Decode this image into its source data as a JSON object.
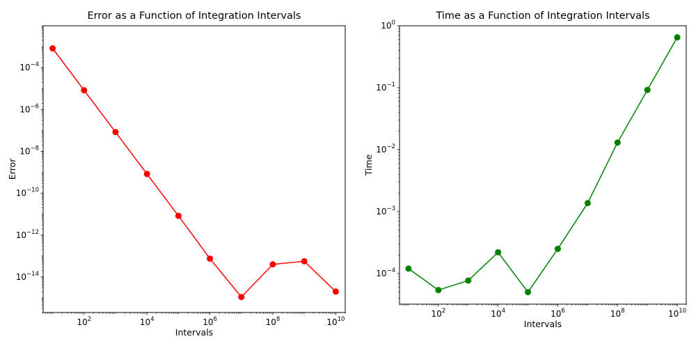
{
  "chart_data": [
    {
      "type": "line",
      "title": "Error as a Function of Integration Intervals",
      "xlabel": "Intervals",
      "ylabel": "Error",
      "xscale": "log",
      "yscale": "log",
      "xlim": [
        5.0,
        20000000000
      ],
      "ylim": [
        2e-16,
        0.01
      ],
      "x": [
        10,
        100,
        1000,
        10000,
        100000,
        1000000,
        10000000,
        100000000,
        1000000000,
        10000000000
      ],
      "xticks": [
        {
          "value": 100,
          "base": "10",
          "exp": "2"
        },
        {
          "value": 10000,
          "base": "10",
          "exp": "4"
        },
        {
          "value": 1000000,
          "base": "10",
          "exp": "6"
        },
        {
          "value": 100000000,
          "base": "10",
          "exp": "8"
        },
        {
          "value": 10000000000,
          "base": "10",
          "exp": "10"
        }
      ],
      "yticks": [
        {
          "value": 0.0001,
          "base": "10",
          "exp": "−4"
        },
        {
          "value": 1e-06,
          "base": "10",
          "exp": "−6"
        },
        {
          "value": 1e-08,
          "base": "10",
          "exp": "−8"
        },
        {
          "value": 1e-10,
          "base": "10",
          "exp": "−10"
        },
        {
          "value": 1e-12,
          "base": "10",
          "exp": "−12"
        },
        {
          "value": 1e-14,
          "base": "10",
          "exp": "−14"
        }
      ],
      "grid": false,
      "series": [
        {
          "color": "#ff0000",
          "marker": "circle",
          "values": [
            0.00083,
            8.3e-06,
            8.3e-08,
            8.3e-10,
            8.3e-12,
            7.5e-14,
            1.1e-15,
            4e-14,
            5.6e-14,
            2e-15
          ]
        }
      ]
    },
    {
      "type": "line",
      "title": "Time as a Function of Integration Intervals",
      "xlabel": "Intervals",
      "ylabel": "Time",
      "xscale": "log",
      "yscale": "log",
      "xlim": [
        5.0,
        20000000000
      ],
      "ylim": [
        3.2e-05,
        1.0
      ],
      "x": [
        10,
        100,
        1000,
        10000,
        100000,
        1000000,
        10000000,
        100000000,
        1000000000,
        10000000000
      ],
      "xticks": [
        {
          "value": 100,
          "base": "10",
          "exp": "2"
        },
        {
          "value": 10000,
          "base": "10",
          "exp": "4"
        },
        {
          "value": 1000000,
          "base": "10",
          "exp": "6"
        },
        {
          "value": 100000000,
          "base": "10",
          "exp": "8"
        },
        {
          "value": 10000000000,
          "base": "10",
          "exp": "10"
        }
      ],
      "yticks": [
        {
          "value": 0.0001,
          "base": "10",
          "exp": "−4"
        },
        {
          "value": 0.001,
          "base": "10",
          "exp": "−3"
        },
        {
          "value": 0.01,
          "base": "10",
          "exp": "−2"
        },
        {
          "value": 0.1,
          "base": "10",
          "exp": "−1"
        },
        {
          "value": 1,
          "base": "10",
          "exp": "0"
        }
      ],
      "grid": false,
      "series": [
        {
          "color": "#008000",
          "marker": "circle",
          "values": [
            0.00012,
            5.4e-05,
            7.7e-05,
            0.00022,
            5e-05,
            0.00025,
            0.00137,
            0.013,
            0.092,
            0.65
          ]
        }
      ]
    }
  ]
}
